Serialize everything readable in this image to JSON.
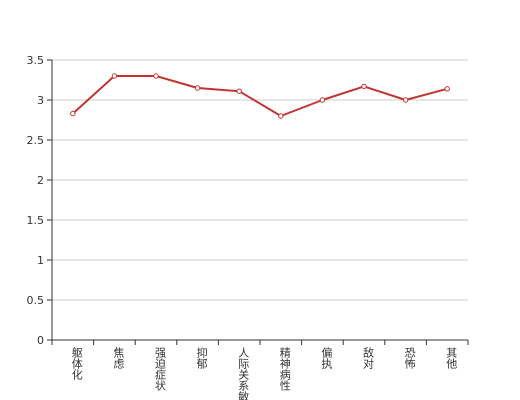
{
  "chart_data": {
    "type": "line",
    "title": "",
    "xlabel": "",
    "ylabel": "",
    "categories": [
      "躯体化",
      "焦虑",
      "强迫症状",
      "抑郁",
      "人际关系敏感",
      "精神病性",
      "偏执",
      "敌对",
      "恐怖",
      "其他"
    ],
    "y_ticks": [
      "0",
      "0.5",
      "1",
      "1.5",
      "2",
      "2.5",
      "3",
      "3.5"
    ],
    "ylim": [
      0,
      3.5
    ],
    "grid": true,
    "series": [
      {
        "values": [
          2.83,
          3.3,
          3.3,
          3.15,
          3.11,
          2.8,
          3.0,
          3.17,
          3.0,
          3.14
        ],
        "color": "#c23531"
      }
    ]
  }
}
